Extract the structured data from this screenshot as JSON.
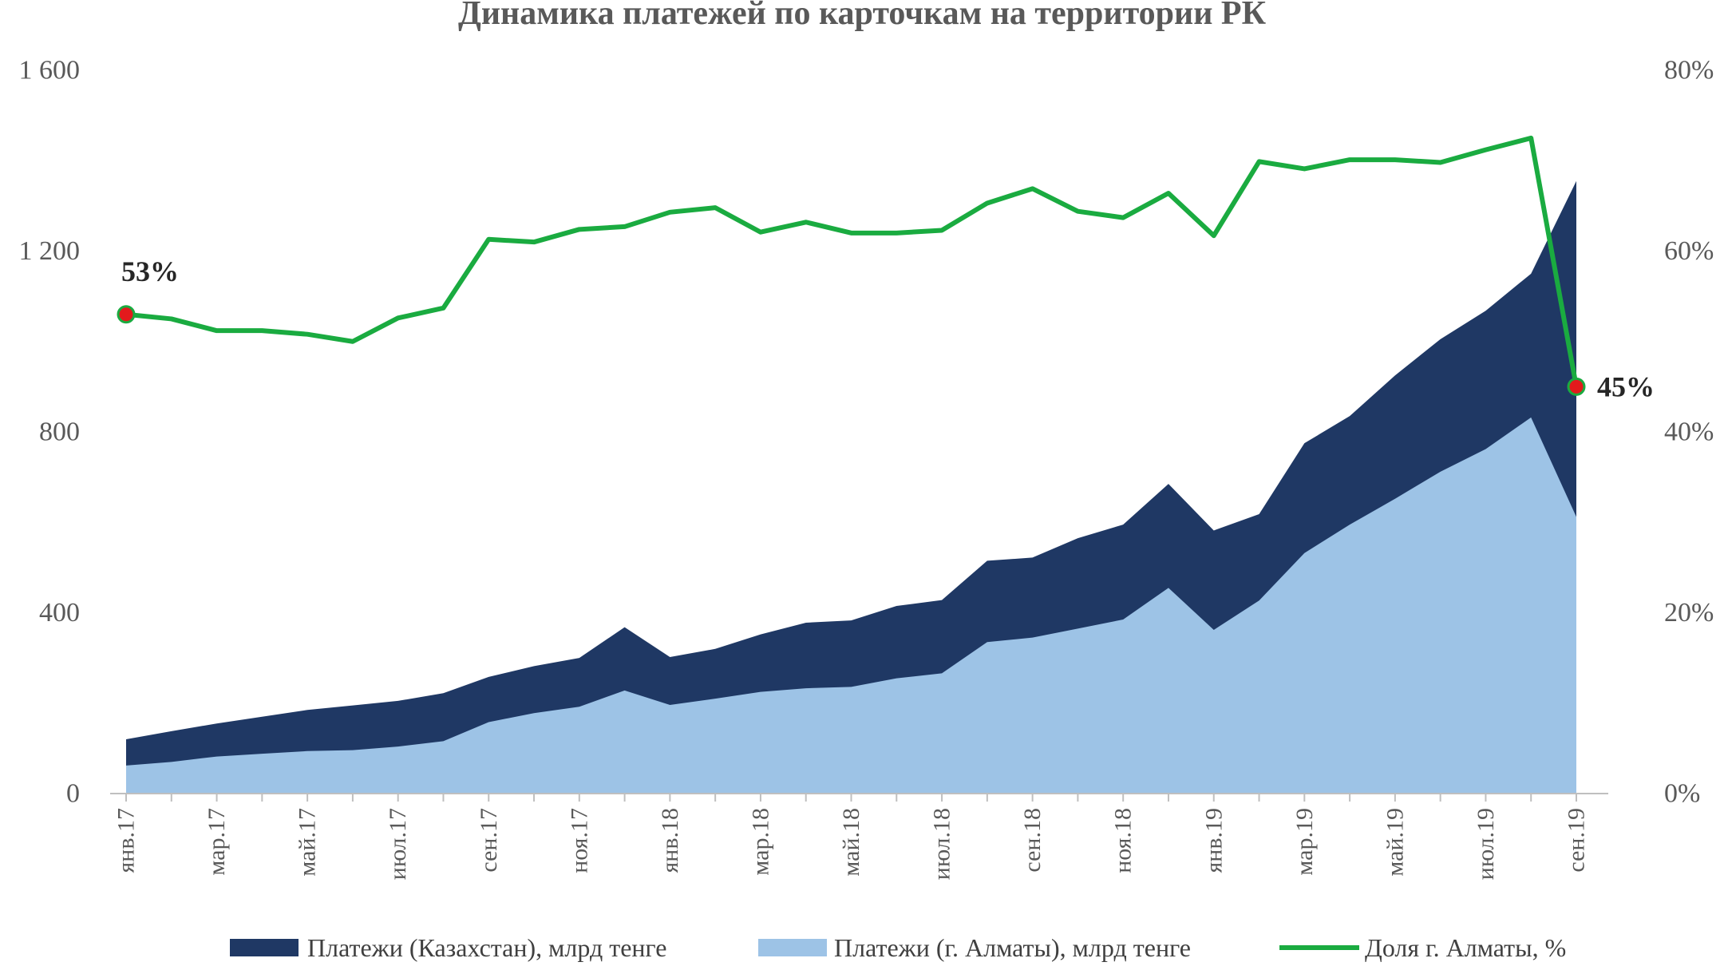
{
  "chart_data": {
    "type": "area",
    "title": "Динамика платежей по карточкам на территории РК",
    "x": [
      "янв.17",
      "фев.17",
      "мар.17",
      "апр.17",
      "май.17",
      "июн.17",
      "июл.17",
      "авг.17",
      "сен.17",
      "окт.17",
      "ноя.17",
      "дек.17",
      "янв.18",
      "фев.18",
      "мар.18",
      "апр.18",
      "май.18",
      "июн.18",
      "июл.18",
      "авг.18",
      "сен.18",
      "окт.18",
      "ноя.18",
      "дек.18",
      "янв.19",
      "фев.19",
      "мар.19",
      "апр.19",
      "май.19",
      "июн.19",
      "июл.19",
      "авг.19",
      "сен.19"
    ],
    "x_tick_labels": [
      "янв.17",
      "мар.17",
      "май.17",
      "июл.17",
      "сен.17",
      "ноя.17",
      "янв.18",
      "мар.18",
      "май.18",
      "июл.18",
      "сен.18",
      "ноя.18",
      "янв.19",
      "мар.19",
      "май.19",
      "июл.19",
      "сен.19"
    ],
    "x_tick_every": 2,
    "ylim_left": [
      0,
      1600
    ],
    "yticks_left": [
      "0",
      "400",
      "800",
      "1 200",
      "1 600"
    ],
    "ylim_right": [
      0,
      80
    ],
    "yticks_right": [
      "0%",
      "20%",
      "40%",
      "60%",
      "80%"
    ],
    "grid": false,
    "legend_position": "bottom",
    "series": [
      {
        "name": "Платежи (Казахстан), млрд тенге",
        "kind": "area",
        "axis": "left",
        "color": "#1f3864",
        "values": [
          120,
          138,
          155,
          170,
          185,
          195,
          205,
          222,
          258,
          282,
          300,
          368,
          302,
          320,
          352,
          378,
          383,
          415,
          428,
          515,
          522,
          565,
          595,
          685,
          582,
          618,
          775,
          835,
          925,
          1005,
          1068,
          1150,
          1355
        ]
      },
      {
        "name": "Платежи (г. Алматы), млрд тенге",
        "kind": "area",
        "axis": "left",
        "color": "#9dc3e6",
        "values": [
          62,
          70,
          82,
          88,
          94,
          96,
          104,
          116,
          158,
          178,
          192,
          228,
          196,
          210,
          225,
          233,
          236,
          255,
          266,
          335,
          345,
          365,
          385,
          455,
          362,
          427,
          532,
          595,
          652,
          712,
          762,
          832,
          612
        ]
      },
      {
        "name": "Доля г. Алматы, %",
        "kind": "line",
        "axis": "right",
        "color": "#1aab40",
        "values": [
          53,
          52.5,
          51.2,
          51.2,
          50.8,
          50,
          52.6,
          53.7,
          61.3,
          61,
          62.4,
          62.7,
          64.3,
          64.8,
          62.1,
          63.2,
          62,
          62,
          62.3,
          65.3,
          66.9,
          64.4,
          63.7,
          66.4,
          61.7,
          69.9,
          69.1,
          70.1,
          70.1,
          69.8,
          71.2,
          72.5,
          45
        ]
      }
    ],
    "annotations": [
      {
        "index": 0,
        "text": "53%"
      },
      {
        "index": 32,
        "text": "45%"
      }
    ]
  }
}
